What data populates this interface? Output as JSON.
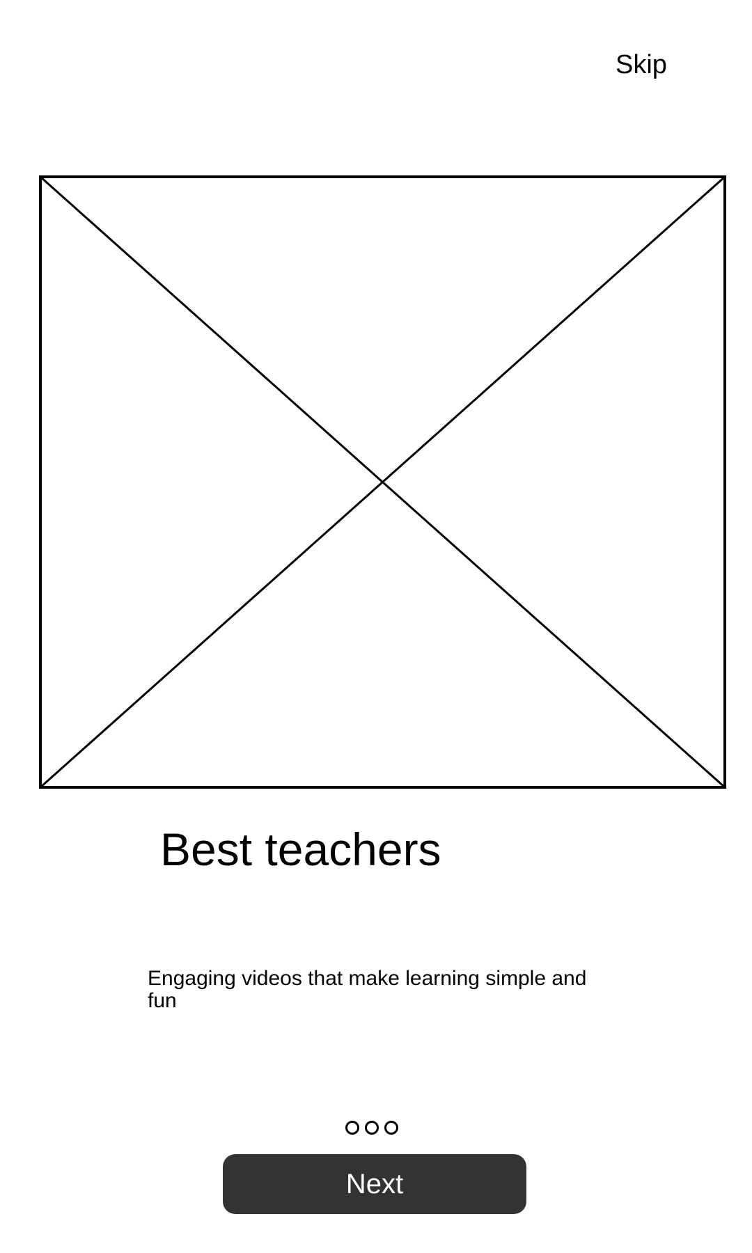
{
  "header": {
    "skip_label": "Skip"
  },
  "media": {
    "icon": "image-placeholder-icon"
  },
  "content": {
    "title": "Best teachers",
    "description": "Engaging videos that make learning simple and fun"
  },
  "pagination": {
    "total": 3
  },
  "footer": {
    "next_label": "Next"
  },
  "colors": {
    "background": "#ffffff",
    "text": "#000000",
    "button_background": "#333333",
    "button_text": "#ffffff"
  }
}
